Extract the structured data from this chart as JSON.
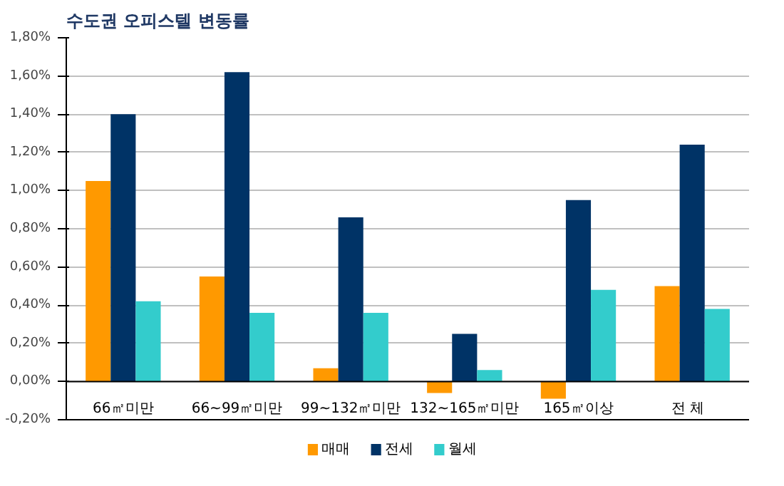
{
  "chart_data": {
    "type": "bar",
    "title": "수도권 오피스텔 변동률",
    "categories": [
      "66㎡미만",
      "66~99㎡미만",
      "99~132㎡미만",
      "132~165㎡미만",
      "165㎡이상",
      "전   체"
    ],
    "series": [
      {
        "name": "매매",
        "color": "#ff9900",
        "values": [
          1.05,
          0.55,
          0.07,
          -0.06,
          -0.09,
          0.5
        ]
      },
      {
        "name": "전세",
        "color": "#003366",
        "values": [
          1.4,
          1.62,
          0.86,
          0.25,
          0.95,
          1.24
        ]
      },
      {
        "name": "월세",
        "color": "#33cccc",
        "values": [
          0.42,
          0.36,
          0.36,
          0.06,
          0.48,
          0.38
        ]
      }
    ],
    "ylim": [
      -0.2,
      1.8
    ],
    "yticks": [
      {
        "value": -0.2,
        "label": "-0,20%"
      },
      {
        "value": 0,
        "label": "0,00%"
      },
      {
        "value": 0.2,
        "label": "0,20%"
      },
      {
        "value": 0.4,
        "label": "0,40%"
      },
      {
        "value": 0.6,
        "label": "0,60%"
      },
      {
        "value": 0.8,
        "label": "0,80%"
      },
      {
        "value": 1.0,
        "label": "1,00%"
      },
      {
        "value": 1.2,
        "label": "1,20%"
      },
      {
        "value": 1.4,
        "label": "1,40%"
      },
      {
        "value": 1.6,
        "label": "1,60%"
      },
      {
        "value": 1.8,
        "label": "1,80%"
      }
    ],
    "grid": "y",
    "legend": "bottom"
  }
}
